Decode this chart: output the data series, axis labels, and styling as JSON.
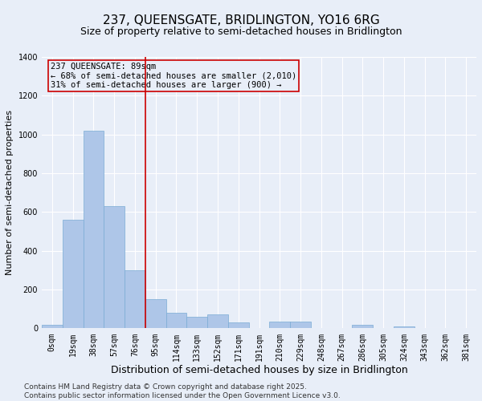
{
  "title": "237, QUEENSGATE, BRIDLINGTON, YO16 6RG",
  "subtitle": "Size of property relative to semi-detached houses in Bridlington",
  "xlabel": "Distribution of semi-detached houses by size in Bridlington",
  "ylabel": "Number of semi-detached properties",
  "categories": [
    "0sqm",
    "19sqm",
    "38sqm",
    "57sqm",
    "76sqm",
    "95sqm",
    "114sqm",
    "133sqm",
    "152sqm",
    "171sqm",
    "191sqm",
    "210sqm",
    "229sqm",
    "248sqm",
    "267sqm",
    "286sqm",
    "305sqm",
    "324sqm",
    "343sqm",
    "362sqm",
    "381sqm"
  ],
  "values": [
    18,
    560,
    1020,
    630,
    300,
    150,
    80,
    60,
    70,
    30,
    0,
    35,
    35,
    0,
    0,
    20,
    0,
    10,
    0,
    0,
    0
  ],
  "bar_color": "#aec6e8",
  "bar_edge_color": "#7aacd4",
  "background_color": "#e8eef8",
  "grid_color": "#ffffff",
  "annotation_box_color": "#cc0000",
  "annotation_text_line1": "237 QUEENSGATE: 89sqm",
  "annotation_text_line2": "← 68% of semi-detached houses are smaller (2,010)",
  "annotation_text_line3": "31% of semi-detached houses are larger (900) →",
  "vline_x": 4.5,
  "vline_color": "#cc0000",
  "ylim": [
    0,
    1400
  ],
  "yticks": [
    0,
    200,
    400,
    600,
    800,
    1000,
    1200,
    1400
  ],
  "footnote": "Contains HM Land Registry data © Crown copyright and database right 2025.\nContains public sector information licensed under the Open Government Licence v3.0.",
  "title_fontsize": 11,
  "subtitle_fontsize": 9,
  "xlabel_fontsize": 9,
  "ylabel_fontsize": 8,
  "tick_fontsize": 7,
  "annotation_fontsize": 7.5,
  "footnote_fontsize": 6.5
}
